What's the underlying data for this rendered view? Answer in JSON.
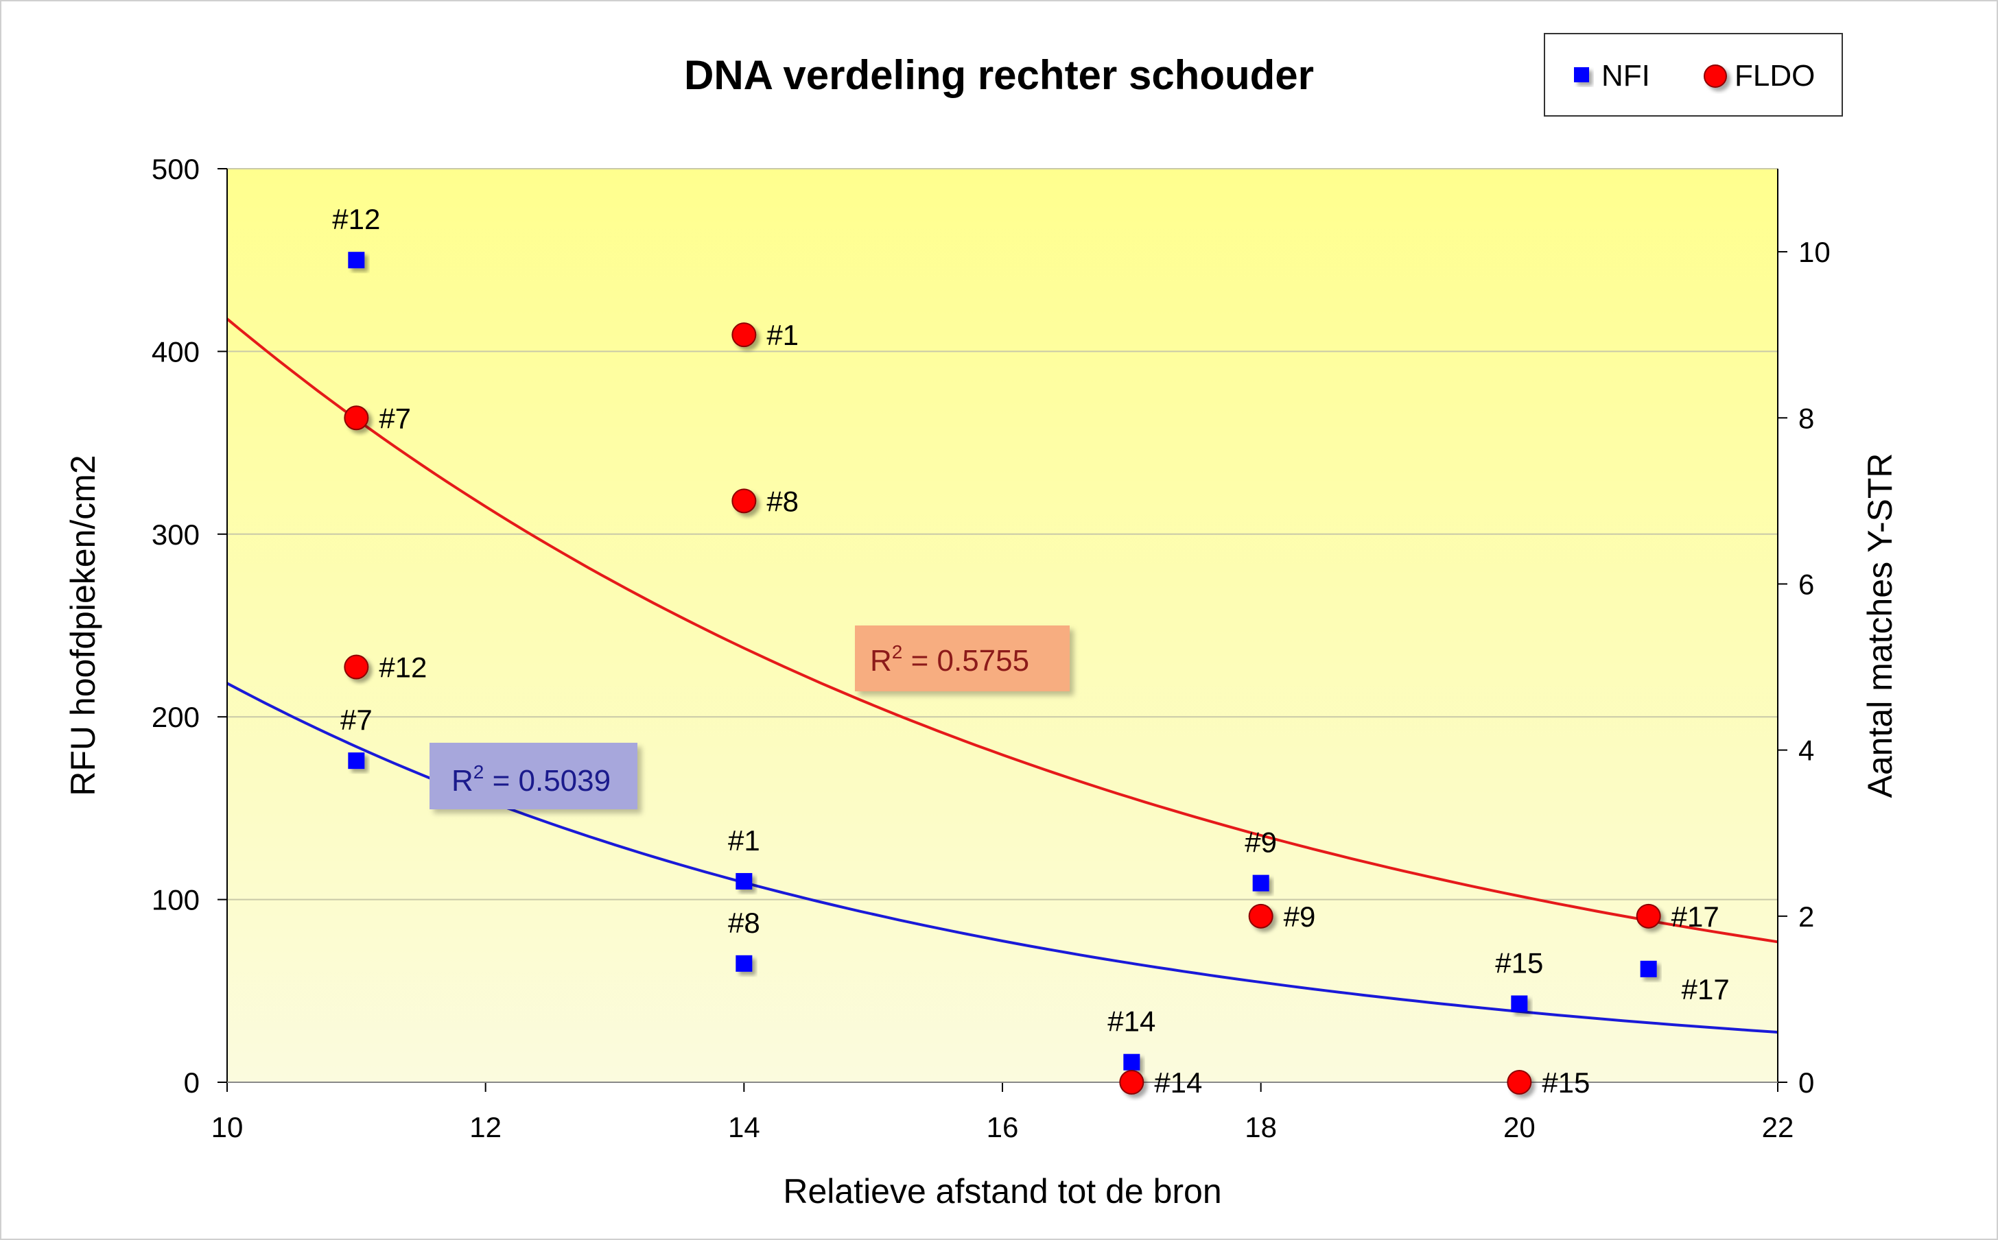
{
  "chart_data": {
    "type": "scatter",
    "title": "DNA verdeling rechter schouder",
    "xlabel": "Relatieve afstand tot de bron",
    "ylabel": "RFU hoofdpieken/cm2",
    "y2label": "Aantal matches Y-STR",
    "xlim": [
      10,
      22
    ],
    "ylim": [
      0,
      500
    ],
    "y2lim": [
      0,
      11
    ],
    "xticks": [
      "10",
      "12",
      "14",
      "16",
      "18",
      "20",
      "22"
    ],
    "yticks": [
      "0",
      "100",
      "200",
      "300",
      "400",
      "500"
    ],
    "y2ticks": [
      "0",
      "2",
      "4",
      "6",
      "8",
      "10"
    ],
    "grid": true,
    "background": "yellow gradient",
    "legend_position": "top-right",
    "series": [
      {
        "name": "NFI",
        "axis": "left",
        "marker": "square",
        "color": "#0000ff",
        "points": [
          {
            "x": 11,
            "y": 450,
            "label": "#12"
          },
          {
            "x": 11,
            "y": 176,
            "label": "#7"
          },
          {
            "x": 14,
            "y": 110,
            "label": "#1"
          },
          {
            "x": 14,
            "y": 65,
            "label": "#8"
          },
          {
            "x": 17,
            "y": 11,
            "label": "#14"
          },
          {
            "x": 18,
            "y": 109,
            "label": "#9"
          },
          {
            "x": 20,
            "y": 43,
            "label": "#15"
          },
          {
            "x": 21,
            "y": 62,
            "label": "#17"
          }
        ]
      },
      {
        "name": "FLDO",
        "axis": "right",
        "marker": "circle",
        "color": "#ff0000",
        "points": [
          {
            "x": 14,
            "y": 9,
            "label": "#1"
          },
          {
            "x": 11,
            "y": 8,
            "label": "#7"
          },
          {
            "x": 14,
            "y": 7,
            "label": "#8"
          },
          {
            "x": 11,
            "y": 5,
            "label": "#12"
          },
          {
            "x": 18,
            "y": 2,
            "label": "#9"
          },
          {
            "x": 21,
            "y": 2,
            "label": "#17"
          },
          {
            "x": 17,
            "y": 0,
            "label": "#14"
          },
          {
            "x": 20,
            "y": 0,
            "label": "#15"
          }
        ]
      }
    ],
    "trendlines": [
      {
        "series": "NFI",
        "color": "#1a1ad8",
        "r2_label": "R",
        "r2_sup": "2",
        "r2_value": " = 0.5039",
        "box_color": "#a7a7dc",
        "text_color": "#1a1a8c"
      },
      {
        "series": "FLDO",
        "color": "#e51a1a",
        "r2_label": "R",
        "r2_sup": "2",
        "r2_value": " = 0.5755",
        "box_color": "#f7ad80",
        "text_color": "#8c1a1a"
      }
    ]
  }
}
